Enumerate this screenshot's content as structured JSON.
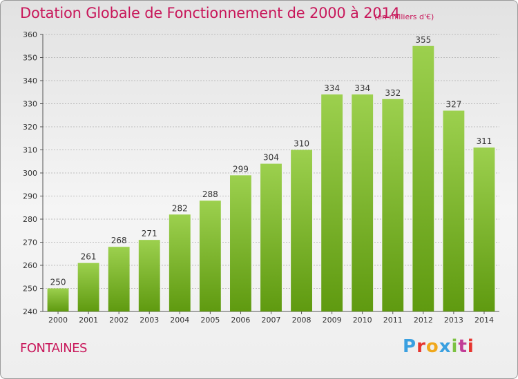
{
  "header": {
    "title": "Dotation Globale de Fonctionnement de 2000 à 2014",
    "subtitle": "(en milliers d'€)"
  },
  "footer": {
    "commune": "FONTAINES",
    "logo_text": "Proxiti",
    "logo_colors": [
      "#3aa0e0",
      "#e6342e",
      "#f0a81c",
      "#3aa0e0",
      "#7cc242",
      "#c13c97",
      "#e6342e"
    ]
  },
  "colors": {
    "accent": "#c8175a",
    "bar_light": "#9cd04e",
    "bar_dark": "#5f9a10",
    "grid": "#bdbdbd"
  },
  "chart_data": {
    "type": "bar",
    "title": "Dotation Globale de Fonctionnement de 2000 à 2014",
    "subtitle": "(en milliers d'€)",
    "categories": [
      "2000",
      "2001",
      "2002",
      "2003",
      "2004",
      "2005",
      "2006",
      "2007",
      "2008",
      "2009",
      "2010",
      "2011",
      "2012",
      "2013",
      "2014"
    ],
    "values": [
      250,
      261,
      268,
      271,
      282,
      288,
      299,
      304,
      310,
      334,
      334,
      332,
      355,
      327,
      311
    ],
    "ylim": [
      240,
      360
    ],
    "yticks": [
      240,
      250,
      260,
      270,
      280,
      290,
      300,
      310,
      320,
      330,
      340,
      350,
      360
    ],
    "xlabel": "",
    "ylabel": "",
    "grid": true,
    "data_labels": true
  }
}
